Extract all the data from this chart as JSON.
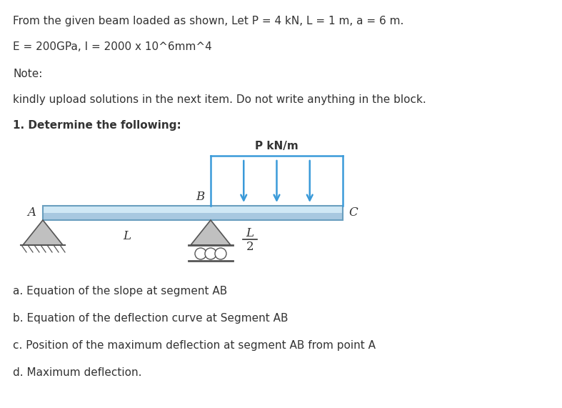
{
  "title_line1": "From the given beam loaded as shown, Let P = 4 kN, L = 1 m, a = 6 m.",
  "title_line2": "E = 200GPa, I = 2000 x 10^6mm^4",
  "note_label": "Note:",
  "note_text": "kindly upload solutions in the next item. Do not write anything in the block.",
  "section_title": "1. Determine the following:",
  "questions": [
    "a. Equation of the slope at segment AB",
    "b. Equation of the deflection curve at Segment AB",
    "c. Position of the maximum deflection at segment AB from point A",
    "d. Maximum deflection."
  ],
  "beam_label_A": "A",
  "beam_label_B": "B",
  "beam_label_C": "C",
  "beam_label_L1": "L",
  "beam_label_L2": "L",
  "beam_label_L2_frac": "2",
  "load_label": "P kN/m",
  "bg_color": "#ffffff",
  "text_color": "#333333",
  "blue_text_color": "#3a7abf",
  "beam_color_top": "#d0e8f5",
  "beam_color_bottom": "#a8c8e0",
  "load_arrow_color": "#3a9ad9",
  "load_box_color": "#3a9ad9",
  "support_color": "#c0c0c0",
  "support_edge": "#555555"
}
